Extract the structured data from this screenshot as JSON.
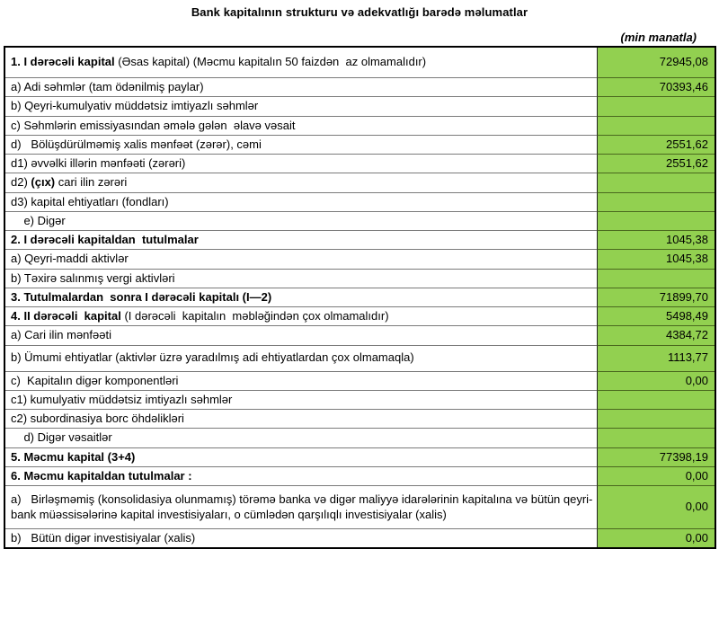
{
  "header": {
    "title": "Bank kapitalının strukturu və adekvatlığı barədə məlumatlar",
    "unit_note": "(min manatla)"
  },
  "colors": {
    "value_cell_green": "#92D050",
    "outer_border": "#000000",
    "grid_line_label": "#7b7b7b",
    "grid_line_value": "#4a681e"
  },
  "table": {
    "columns": [
      "indicator",
      "amount"
    ],
    "rows": [
      {
        "label_segments": [
          {
            "text": "1. I dərəcəli kapital",
            "bold": true
          },
          {
            "text": " (Əsas kapital) (Məcmu kapitalın 50 faizdən  az olmamalıdır)",
            "bold": false
          }
        ],
        "value": "72945,08"
      },
      {
        "label_segments": [
          {
            "text": "a) Adi səhmlər (tam ödənilmiş paylar)",
            "bold": false
          }
        ],
        "value": "70393,46"
      },
      {
        "label_segments": [
          {
            "text": "b) Qeyri-kumulyativ müddətsiz imtiyazlı səhmlər",
            "bold": false
          }
        ],
        "value": ""
      },
      {
        "label_segments": [
          {
            "text": "c) Səhmlərin emissiyasından əmələ gələn  əlavə vəsait",
            "bold": false
          }
        ],
        "value": ""
      },
      {
        "label_segments": [
          {
            "text": "d)   Bölüşdürülməmiş xalis mənfəət (zərər), cəmi",
            "bold": false
          }
        ],
        "value": "2551,62"
      },
      {
        "label_segments": [
          {
            "text": "d1) əvvəlki illərin mənfəəti (zərəri)",
            "bold": false
          }
        ],
        "value": "2551,62"
      },
      {
        "label_segments": [
          {
            "text": "d2) ",
            "bold": false
          },
          {
            "text": "(çıx)",
            "bold": true
          },
          {
            "text": " cari ilin zərəri",
            "bold": false
          }
        ],
        "value": ""
      },
      {
        "label_segments": [
          {
            "text": "d3) kapital ehtiyatları (fondları)",
            "bold": false
          }
        ],
        "value": ""
      },
      {
        "label_segments": [
          {
            "text": "    e) Digər",
            "bold": false
          }
        ],
        "value": ""
      },
      {
        "label_segments": [
          {
            "text": "2. I dərəcəli kapitaldan  tutulmalar",
            "bold": true
          }
        ],
        "value": "1045,38"
      },
      {
        "label_segments": [
          {
            "text": "a) Qeyri-maddi aktivlər",
            "bold": false
          }
        ],
        "value": "1045,38"
      },
      {
        "label_segments": [
          {
            "text": "b) Təxirə salınmış vergi aktivləri",
            "bold": false
          }
        ],
        "value": ""
      },
      {
        "label_segments": [
          {
            "text": "3. Tutulmalardan  sonra I dərəcəli kapitalı (I—2)",
            "bold": true
          }
        ],
        "value": "71899,70"
      },
      {
        "label_segments": [
          {
            "text": "4. II dərəcəli  kapital",
            "bold": true
          },
          {
            "text": " (I dərəcəli  kapitalın  məbləğindən çox olmamalıdır)",
            "bold": false
          }
        ],
        "value": "5498,49"
      },
      {
        "label_segments": [
          {
            "text": "a) Cari ilin mənfəəti",
            "bold": false
          }
        ],
        "value": "4384,72"
      },
      {
        "label_segments": [
          {
            "text": "b) Ümumi ehtiyatlar (aktivlər üzrə yaradılmış adi ehtiyatlardan çox olmamaqla)",
            "bold": false
          }
        ],
        "value": "1113,77"
      },
      {
        "label_segments": [
          {
            "text": "c)  Kapitalın digər komponentləri",
            "bold": false
          }
        ],
        "value": "0,00"
      },
      {
        "label_segments": [
          {
            "text": "c1) kumulyativ müddətsiz imtiyazlı səhmlər",
            "bold": false
          }
        ],
        "value": ""
      },
      {
        "label_segments": [
          {
            "text": "c2) subordinasiya borc öhdəlikləri",
            "bold": false
          }
        ],
        "value": ""
      },
      {
        "label_segments": [
          {
            "text": "    d) Digər vəsaitlər",
            "bold": false
          }
        ],
        "value": ""
      },
      {
        "label_segments": [
          {
            "text": "5. Məcmu kapital (3+4)",
            "bold": true
          }
        ],
        "value": "77398,19"
      },
      {
        "label_segments": [
          {
            "text": "6. Məcmu kapitaldan tutulmalar :",
            "bold": true
          }
        ],
        "value": "0,00"
      },
      {
        "label_segments": [
          {
            "text": "a)   Birləşməmiş (konsolidasiya olunmamış) törəmə banka və digər maliyyə idarələrinin kapitalına və bütün qeyri-bank müəssisələrinə kapital investisiyaları, o cümlədən qarşılıqlı investisiyalar (xalis)",
            "bold": false
          }
        ],
        "value": "0,00"
      },
      {
        "label_segments": [
          {
            "text": "b)   Bütün digər investisiyalar (xalis)",
            "bold": false
          }
        ],
        "value": "0,00"
      }
    ]
  }
}
